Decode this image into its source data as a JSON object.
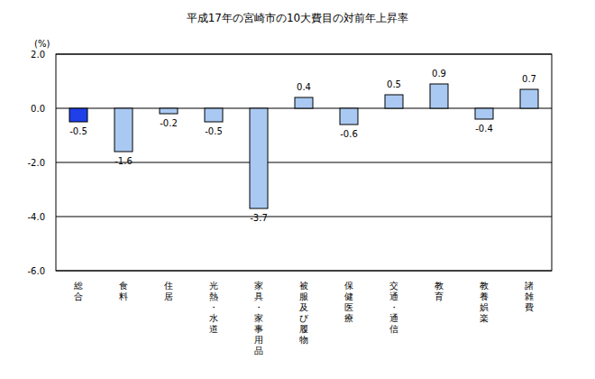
{
  "chart_data": {
    "type": "bar",
    "title": "平成17年の宮崎市の10大費目の対前年上昇率",
    "y_label": "(%)",
    "categories": [
      "総合",
      "食料",
      "住居",
      "光熱・水道",
      "家具・家事用品",
      "被服及び履物",
      "保健医療",
      "交通・通信",
      "教育",
      "教養娯楽",
      "諸雑費"
    ],
    "values": [
      -0.5,
      -1.6,
      -0.2,
      -0.5,
      -3.7,
      0.4,
      -0.6,
      0.5,
      0.9,
      -0.4,
      0.7
    ],
    "colors": [
      "#1f3fe8",
      "#a9c9f2",
      "#a9c9f2",
      "#a9c9f2",
      "#a9c9f2",
      "#a9c9f2",
      "#a9c9f2",
      "#a9c9f2",
      "#a9c9f2",
      "#a9c9f2",
      "#a9c9f2"
    ],
    "ylim": [
      -6,
      2
    ],
    "yticks": [
      {
        "value": -6,
        "label": "-6.0"
      },
      {
        "value": -4,
        "label": "-4.0"
      },
      {
        "value": -2,
        "label": "-2.0"
      },
      {
        "value": 0,
        "label": "0.0"
      },
      {
        "value": 2,
        "label": "2.0"
      }
    ],
    "grid": true,
    "data_labels": true
  }
}
